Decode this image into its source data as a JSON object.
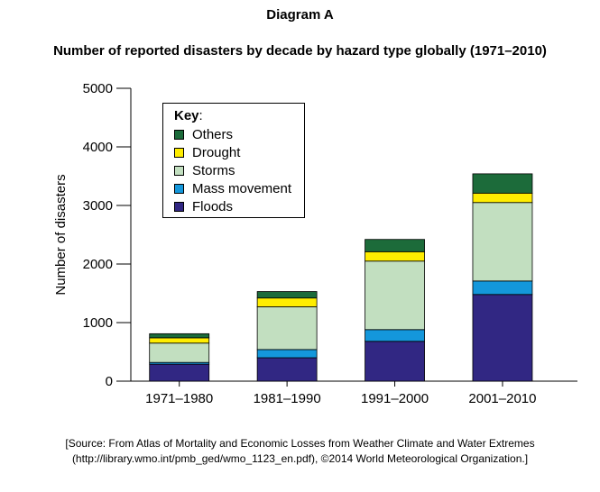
{
  "header": {
    "diagram_label": "Diagram A",
    "title": "Number of reported disasters by decade by hazard type globally (1971–2010)"
  },
  "chart_data": {
    "type": "bar",
    "stacked": true,
    "title": "Number of reported disasters by decade by hazard type globally (1971–2010)",
    "xlabel": "",
    "ylabel": "Number of disasters",
    "ylim": [
      0,
      5000
    ],
    "yticks": [
      0,
      1000,
      2000,
      3000,
      4000,
      5000
    ],
    "ytick_labels": [
      "0",
      "1000",
      "2000",
      "3000",
      "4000",
      "5000"
    ],
    "categories": [
      "1971–1980",
      "1981–1990",
      "1991–2000",
      "2001–2010"
    ],
    "series": [
      {
        "name": "Floods",
        "color": "#312783",
        "values": [
          290,
          400,
          680,
          1480
        ]
      },
      {
        "name": "Mass movement",
        "color": "#1497db",
        "values": [
          30,
          140,
          200,
          230
        ]
      },
      {
        "name": "Storms",
        "color": "#c2dfc0",
        "values": [
          330,
          730,
          1170,
          1340
        ]
      },
      {
        "name": "Drought",
        "color": "#ffed00",
        "values": [
          90,
          150,
          160,
          160
        ]
      },
      {
        "name": "Others",
        "color": "#1c6b3a",
        "values": [
          70,
          110,
          210,
          330
        ]
      }
    ],
    "legend": {
      "title": "Key",
      "title_suffix": ":",
      "placement": "top-left",
      "order": [
        "Others",
        "Drought",
        "Storms",
        "Mass movement",
        "Floods"
      ]
    },
    "grid": false
  },
  "source": {
    "line1": "[Source: From Atlas of Mortality and Economic Losses from Weather Climate and Water Extremes",
    "line2": "(http://library.wmo.int/pmb_ged/wmo_1123_en.pdf), ©2014 World Meteorological Organization.]"
  }
}
